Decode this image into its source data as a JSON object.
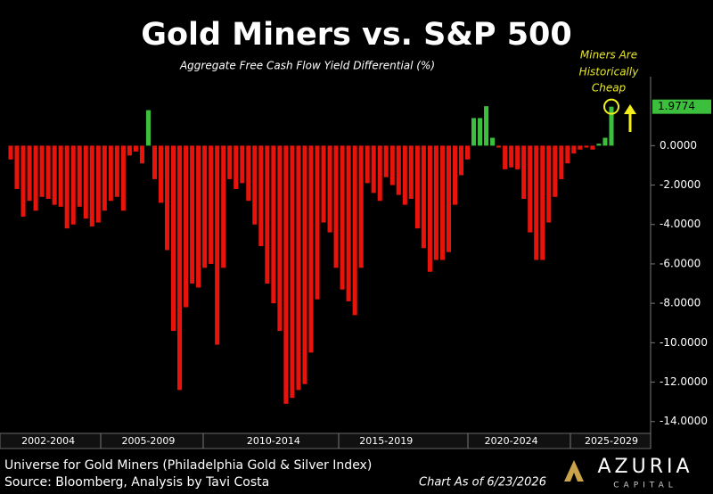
{
  "chart_data": {
    "type": "bar",
    "title": "Gold Miners vs. S&P 500",
    "subtitle": "Aggregate Free Cash Flow Yield Differential (%)",
    "annotation": [
      "Miners Are",
      "Historically",
      "Cheap"
    ],
    "categories": [
      null,
      null,
      null,
      null,
      null,
      null,
      "2002-2004",
      null,
      null,
      null,
      null,
      null,
      null,
      null,
      null,
      null,
      null,
      null,
      null,
      null,
      null,
      null,
      "2005-2009",
      null,
      null,
      null,
      null,
      null,
      null,
      null,
      null,
      null,
      null,
      null,
      null,
      null,
      null,
      null,
      null,
      null,
      null,
      null,
      "2010-2014",
      null,
      null,
      null,
      null,
      null,
      null,
      null,
      null,
      null,
      null,
      null,
      null,
      null,
      null,
      null,
      null,
      null,
      "2015-2019",
      null,
      null,
      null,
      null,
      null,
      null,
      null,
      null,
      null,
      null,
      null,
      null,
      null,
      null,
      null,
      null,
      null,
      null,
      null,
      "2020-2024",
      null,
      null,
      null,
      null,
      null,
      null,
      null,
      null,
      null,
      null,
      null,
      null,
      null,
      null,
      null,
      "2025-2029"
    ],
    "values": [
      -0.7,
      -2.2,
      -3.6,
      -2.8,
      -3.3,
      -2.6,
      -2.7,
      -3.0,
      -3.1,
      -4.2,
      -4.0,
      -3.1,
      -3.7,
      -4.1,
      -3.9,
      -3.3,
      -2.8,
      -2.6,
      -3.3,
      -0.5,
      -0.3,
      -0.9,
      1.8,
      -1.7,
      -2.9,
      -5.3,
      -9.4,
      -12.4,
      -8.2,
      -7.0,
      -7.2,
      -6.2,
      -6.0,
      -10.1,
      -6.2,
      -1.7,
      -2.2,
      -1.9,
      -2.8,
      -4.0,
      -5.1,
      -7.0,
      -8.0,
      -9.4,
      -13.1,
      -12.8,
      -12.4,
      -12.1,
      -10.5,
      -7.8,
      -3.9,
      -4.4,
      -6.2,
      -7.3,
      -7.9,
      -8.6,
      -6.2,
      -1.9,
      -2.4,
      -2.8,
      -1.6,
      -2.0,
      -2.5,
      -3.0,
      -2.7,
      -4.2,
      -5.2,
      -6.4,
      -5.8,
      -5.8,
      -5.4,
      -3.0,
      -1.5,
      -0.7,
      1.4,
      1.4,
      2.0,
      0.4,
      -0.1,
      -1.2,
      -1.1,
      -1.2,
      -2.7,
      -4.4,
      -5.8,
      -5.8,
      -3.9,
      -2.6,
      -1.7,
      -0.9,
      -0.4,
      -0.2,
      -0.1,
      -0.2,
      0.1,
      0.4,
      1.9774
    ],
    "color": "#e8140c",
    "positive_color": "#3cbf3c",
    "ylim": [
      -14.6,
      3.5
    ],
    "yticks": [
      {
        "value": 0,
        "label": "0.0000"
      },
      {
        "value": -2,
        "label": "-2.0000"
      },
      {
        "value": -4,
        "label": "-4.0000"
      },
      {
        "value": -6,
        "label": "-6.0000"
      },
      {
        "value": -8,
        "label": "-8.0000"
      },
      {
        "value": -10,
        "label": "-10.0000"
      },
      {
        "value": -12,
        "label": "-12.0000"
      },
      {
        "value": -14,
        "label": "-14.0000"
      }
    ],
    "axis_side": "right"
  },
  "footer": {
    "universe": "Universe for Gold Miners (Philadelphia Gold & Silver Index)",
    "source": "Source: Bloomberg, Analysis by Tavi Costa",
    "date": "Chart As of 6/23/2026",
    "logo": "AZURIA",
    "logo_sub": "CAPITAL"
  }
}
